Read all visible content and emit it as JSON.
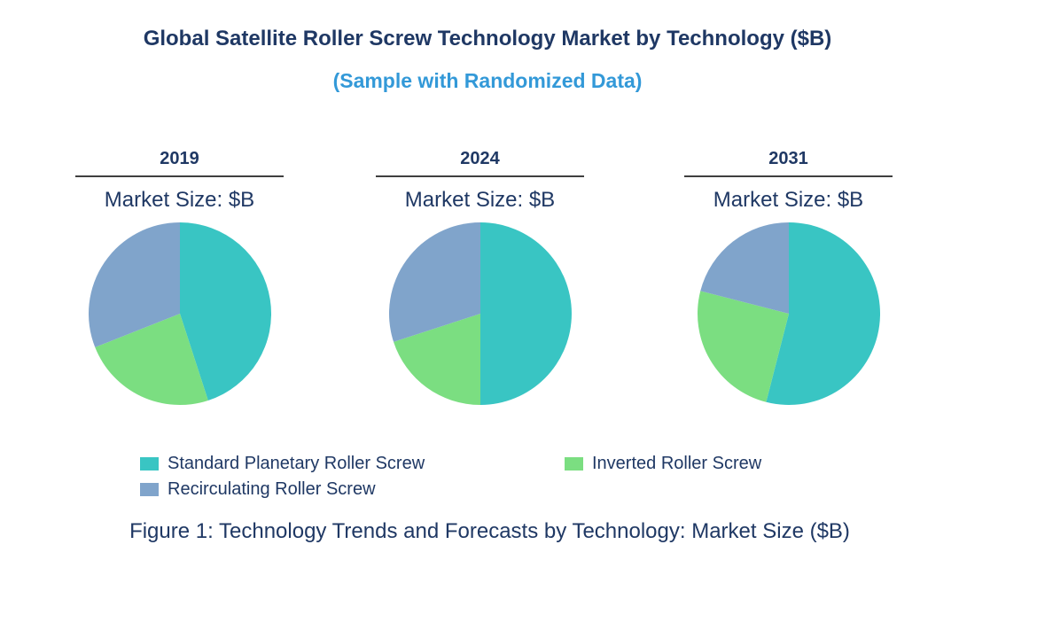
{
  "header": {
    "title": "Global Satellite Roller Screw Technology Market by Technology ($B)",
    "subtitle": "(Sample with Randomized Data)"
  },
  "columns": [
    {
      "year": "2019",
      "market_size_label": "Market Size: $B"
    },
    {
      "year": "2024",
      "market_size_label": "Market Size: $B"
    },
    {
      "year": "2031",
      "market_size_label": "Market Size: $B"
    }
  ],
  "legend": [
    {
      "label": "Standard Planetary Roller Screw",
      "color": "#39C5C3"
    },
    {
      "label": "Recirculating Roller Screw",
      "color": "#80A4CB"
    },
    {
      "label": "Inverted Roller Screw",
      "color": "#7BDE81"
    }
  ],
  "caption": "Figure 1: Technology Trends and Forecasts by Technology: Market Size ($B)",
  "colors": {
    "title_navy": "#1F3864",
    "subtitle_blue": "#3399D8",
    "rule_gray": "#3F3F3F",
    "teal": "#39C5C3",
    "green": "#7BDE81",
    "steel_blue": "#80A4CB"
  },
  "chart_data": {
    "type": "pie",
    "title": "Global Satellite Roller Screw Technology Market by Technology ($B)",
    "subtitle": "(Sample with Randomized Data)",
    "categories": [
      "Standard Planetary Roller Screw",
      "Inverted Roller Screw",
      "Recirculating Roller Screw"
    ],
    "slice_colors": [
      "#39C5C3",
      "#7BDE81",
      "#80A4CB"
    ],
    "start_angle_deg": 0,
    "direction": "clockwise",
    "legend_position": "bottom",
    "pies": [
      {
        "year": "2019",
        "values_percent": [
          45,
          24,
          31
        ]
      },
      {
        "year": "2024",
        "values_percent": [
          50,
          20,
          30
        ]
      },
      {
        "year": "2031",
        "values_percent": [
          54,
          25,
          21
        ]
      }
    ]
  }
}
